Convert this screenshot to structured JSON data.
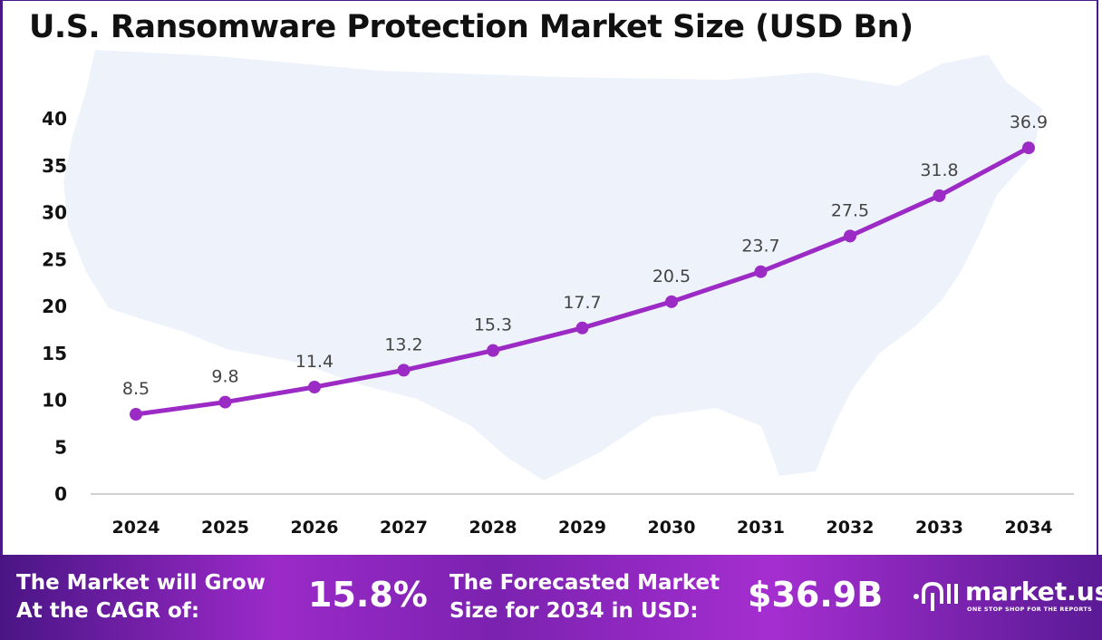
{
  "title": "U.S. Ransomware Protection Market Size (USD Bn)",
  "chart_data": {
    "type": "line",
    "title": "U.S. Ransomware Protection Market Size (USD Bn)",
    "categories": [
      "2024",
      "2025",
      "2026",
      "2027",
      "2028",
      "2029",
      "2030",
      "2031",
      "2032",
      "2033",
      "2034"
    ],
    "values": [
      8.5,
      9.8,
      11.4,
      13.2,
      15.3,
      17.7,
      20.5,
      23.7,
      27.5,
      31.8,
      36.9
    ],
    "data_labels": [
      "8.5",
      "9.8",
      "11.4",
      "13.2",
      "15.3",
      "17.7",
      "20.5",
      "23.7",
      "27.5",
      "31.8",
      "36.9"
    ],
    "yticks": [
      "0",
      "5",
      "10",
      "15",
      "20",
      "25",
      "30",
      "35",
      "40"
    ],
    "ylim": [
      0,
      40
    ],
    "grid": false,
    "line_color": "#9b2bc4",
    "background_image": "us-map-silhouette"
  },
  "footer": {
    "cagr_label_line1": "The Market will Grow",
    "cagr_label_line2": "At the CAGR of:",
    "cagr_value": "15.8%",
    "forecast_label_line1": "The Forecasted Market",
    "forecast_label_line2": "Size for 2034 in USD:",
    "forecast_value": "$36.9B",
    "logo_name": "market.us",
    "logo_tagline": "ONE STOP SHOP FOR THE REPORTS"
  }
}
